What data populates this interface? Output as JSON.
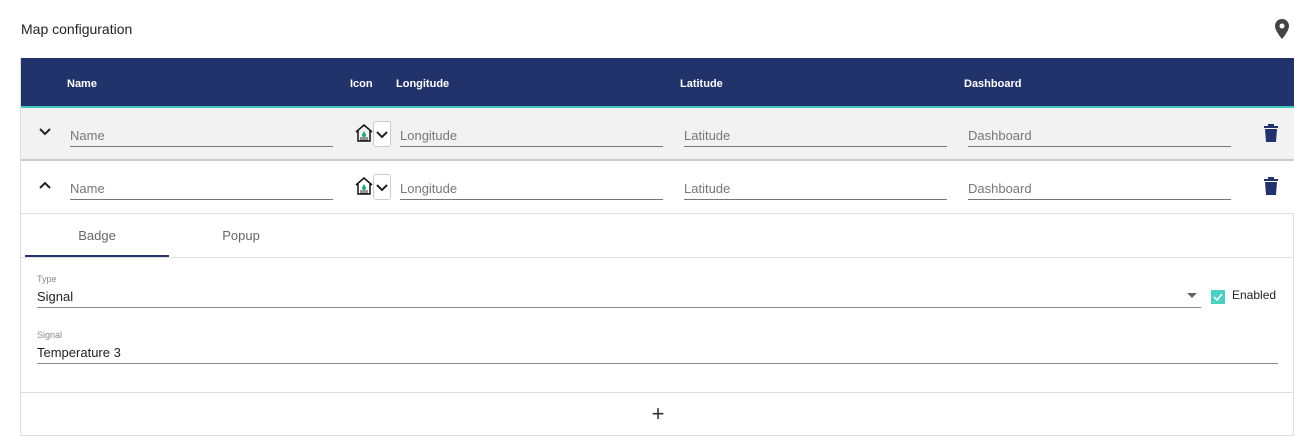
{
  "title": "Map configuration",
  "columns": {
    "name": "Name",
    "icon": "Icon",
    "longitude": "Longitude",
    "latitude": "Latitude",
    "dashboard": "Dashboard"
  },
  "rows": [
    {
      "name_placeholder": "Name",
      "longitude_placeholder": "Longitude",
      "latitude_placeholder": "Latitude",
      "dashboard_placeholder": "Dashboard",
      "expanded": false,
      "icon": "house-water-icon"
    },
    {
      "name_placeholder": "Name",
      "longitude_placeholder": "Longitude",
      "latitude_placeholder": "Latitude",
      "dashboard_placeholder": "Dashboard",
      "expanded": true,
      "icon": "house-water-icon"
    }
  ],
  "tabs": [
    "Badge",
    "Popup"
  ],
  "badge": {
    "type_label": "Type",
    "type_value": "Signal",
    "enabled_label": "Enabled",
    "enabled": true,
    "signal_label": "Signal",
    "signal_value": "Temperature 3"
  },
  "add_label": "+",
  "colors": {
    "header": "#21336a",
    "accent": "#3fc9c0",
    "checkbox": "#4dd0c4"
  }
}
